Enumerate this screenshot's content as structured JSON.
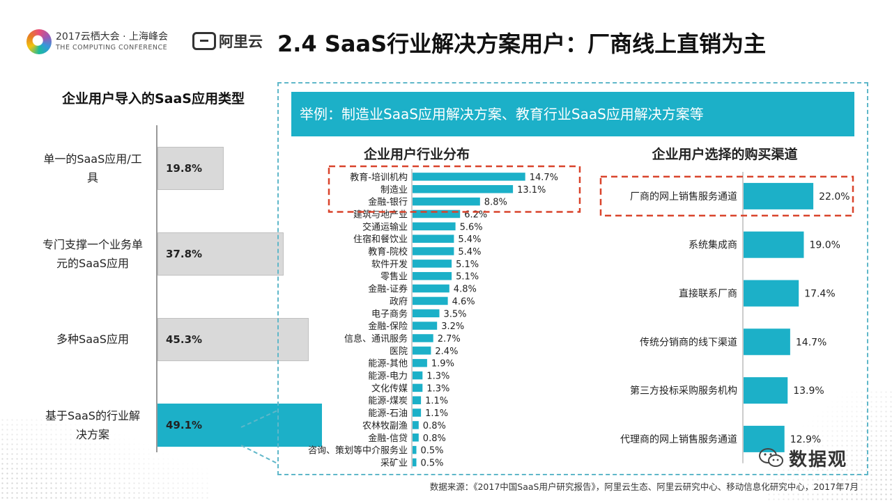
{
  "header": {
    "conference_line1": "2017云栖大会 · 上海峰会",
    "conference_line2": "THE COMPUTING CONFERENCE",
    "brand": "阿里云",
    "title": "2.4 SaaS行业解决方案用户：厂商线上直销为主"
  },
  "banner": "举例：制造业SaaS应用解决方案、教育行业SaaS应用解决方案等",
  "colors": {
    "accent": "#1cb0c8",
    "grey_bar": "#d9d9d9",
    "highlight": "#d9432b",
    "panel_border": "#5fb7c9"
  },
  "chart_data": [
    {
      "type": "bar",
      "orientation": "horizontal",
      "title": "企业用户导入的SaaS应用类型",
      "categories": [
        [
          "单一的SaaS应用/工",
          "具"
        ],
        [
          "专门支撑一个业务单",
          "元的SaaS应用"
        ],
        [
          "多种SaaS应用"
        ],
        [
          "基于SaaS的行业解",
          "决方案"
        ]
      ],
      "values": [
        19.8,
        37.8,
        45.3,
        49.1
      ],
      "labels": [
        "19.8%",
        "37.8%",
        "45.3%",
        "49.1%"
      ],
      "highlight_index": 3
    },
    {
      "type": "bar",
      "orientation": "horizontal",
      "title": "企业用户行业分布",
      "categories": [
        "教育-培训机构",
        "制造业",
        "金融-银行",
        "建筑与地产业",
        "交通运输业",
        "住宿和餐饮业",
        "教育-院校",
        "软件开发",
        "零售业",
        "金融-证券",
        "政府",
        "电子商务",
        "金融-保险",
        "信息、通讯服务",
        "医院",
        "能源-其他",
        "能源-电力",
        "文化传媒",
        "能源-煤炭",
        "能源-石油",
        "农林牧副渔",
        "金融-信贷",
        "咨询、策划等中介服务业",
        "采矿业"
      ],
      "values": [
        14.7,
        13.1,
        8.8,
        6.2,
        5.6,
        5.4,
        5.4,
        5.1,
        5.1,
        4.8,
        4.6,
        3.5,
        3.2,
        2.7,
        2.4,
        1.9,
        1.3,
        1.3,
        1.1,
        1.1,
        0.8,
        0.8,
        0.5,
        0.5
      ],
      "labels": [
        "14.7%",
        "13.1%",
        "8.8%",
        "6.2%",
        "5.6%",
        "5.4%",
        "5.4%",
        "5.1%",
        "5.1%",
        "4.8%",
        "4.6%",
        "3.5%",
        "3.2%",
        "2.7%",
        "2.4%",
        "1.9%",
        "1.3%",
        "1.3%",
        "1.1%",
        "1.1%",
        "0.8%",
        "0.8%",
        "0.5%",
        "0.5%"
      ],
      "highlight_range": [
        0,
        2
      ]
    },
    {
      "type": "bar",
      "orientation": "horizontal",
      "title": "企业用户选择的购买渠道",
      "categories": [
        "厂商的网上销售服务通道",
        "系统集成商",
        "直接联系厂商",
        "传统分销商的线下渠道",
        "第三方投标采购服务机构",
        "代理商的网上销售服务通道"
      ],
      "values": [
        22.0,
        19.0,
        17.4,
        14.7,
        13.9,
        12.9
      ],
      "labels": [
        "22.0%",
        "19.0%",
        "17.4%",
        "14.7%",
        "13.9%",
        "12.9%"
      ],
      "highlight_index": 0
    }
  ],
  "footer": {
    "source": "数据来源：《2017中国SaaS用户研究报告》，阿里云生态、阿里云研究中心、移动信息化研究中心，2017年7月",
    "wechat": "数据观"
  }
}
